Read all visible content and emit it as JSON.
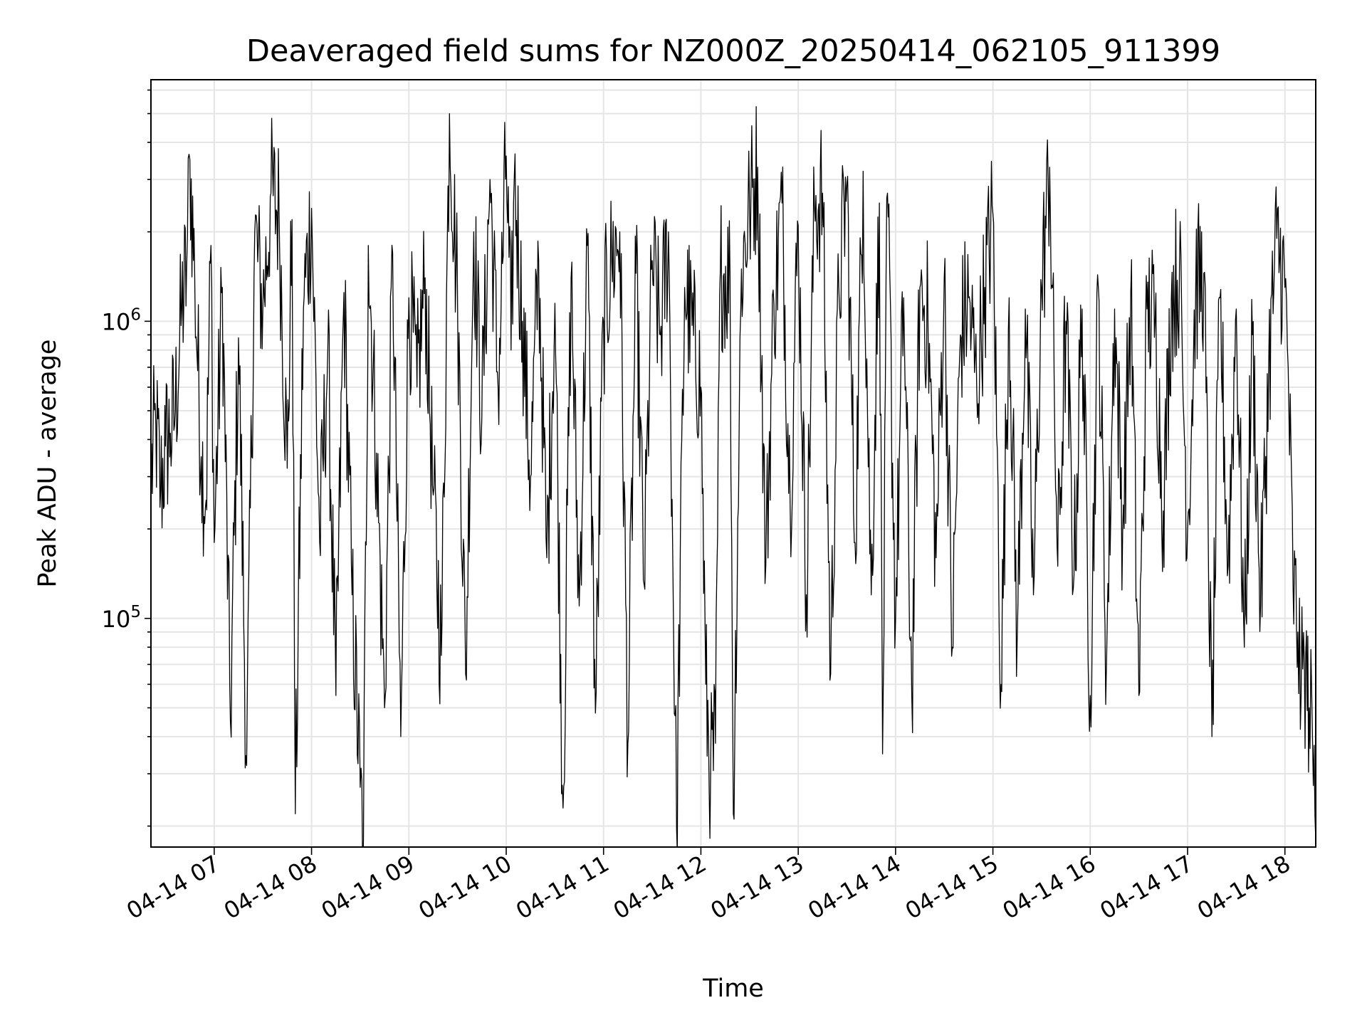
{
  "chart_data": {
    "type": "line",
    "title": "Deaveraged field sums for NZ000Z_20250414_062105_911399",
    "xlabel": "Time",
    "ylabel": "Peak ADU - average",
    "y_scale": "log",
    "ylim": [
      17000,
      6500000
    ],
    "xlim": [
      "2025-04-14 06:21",
      "2025-04-14 18:19"
    ],
    "x_ticks": [
      "04-14 07",
      "04-14 08",
      "04-14 09",
      "04-14 10",
      "04-14 11",
      "04-14 12",
      "04-14 13",
      "04-14 14",
      "04-14 15",
      "04-14 16",
      "04-14 17",
      "04-14 18"
    ],
    "y_ticks": [
      {
        "value": 100000,
        "base": "10",
        "exp": "5"
      },
      {
        "value": 1000000,
        "base": "10",
        "exp": "6"
      }
    ],
    "grid": true,
    "line_color": "#000000",
    "series": [
      {
        "points": [
          [
            "06:21",
            300000
          ],
          [
            "06:24",
            450000
          ],
          [
            "06:27",
            270000
          ],
          [
            "06:30",
            380000
          ],
          [
            "06:33",
            420000
          ],
          [
            "06:36",
            500000
          ],
          [
            "06:40",
            1100000
          ],
          [
            "06:43",
            1500000
          ],
          [
            "06:45",
            3500000
          ],
          [
            "06:48",
            1400000
          ],
          [
            "06:52",
            350000
          ],
          [
            "06:55",
            250000
          ],
          [
            "06:58",
            1800000
          ],
          [
            "07:00",
            180000
          ],
          [
            "07:05",
            1300000
          ],
          [
            "07:10",
            45000
          ],
          [
            "07:15",
            880000
          ],
          [
            "07:20",
            32000
          ],
          [
            "07:25",
            2000000
          ],
          [
            "07:30",
            1100000
          ],
          [
            "07:35",
            2700000
          ],
          [
            "07:40",
            2300000
          ],
          [
            "07:45",
            320000
          ],
          [
            "07:48",
            2200000
          ],
          [
            "07:50",
            22000
          ],
          [
            "07:55",
            1100000
          ],
          [
            "08:00",
            2400000
          ],
          [
            "08:05",
            180000
          ],
          [
            "08:10",
            800000
          ],
          [
            "08:15",
            55000
          ],
          [
            "08:20",
            1250000
          ],
          [
            "08:25",
            120000
          ],
          [
            "08:30",
            27000
          ],
          [
            "08:32",
            18000
          ],
          [
            "08:35",
            1800000
          ],
          [
            "08:40",
            360000
          ],
          [
            "08:45",
            50000
          ],
          [
            "08:50",
            1700000
          ],
          [
            "08:55",
            40000
          ],
          [
            "09:00",
            1200000
          ],
          [
            "09:05",
            600000
          ],
          [
            "09:10",
            1400000
          ],
          [
            "09:15",
            260000
          ],
          [
            "09:20",
            75000
          ],
          [
            "09:25",
            5000000
          ],
          [
            "09:30",
            1200000
          ],
          [
            "09:35",
            65000
          ],
          [
            "09:40",
            2000000
          ],
          [
            "09:45",
            480000
          ],
          [
            "09:50",
            3000000
          ],
          [
            "09:55",
            600000
          ],
          [
            "10:00",
            3600000
          ],
          [
            "10:03",
            800000
          ],
          [
            "10:05",
            3100000
          ],
          [
            "10:10",
            1000000
          ],
          [
            "10:15",
            300000
          ],
          [
            "10:20",
            1600000
          ],
          [
            "10:25",
            160000
          ],
          [
            "10:30",
            1150000
          ],
          [
            "10:35",
            23000
          ],
          [
            "10:40",
            1400000
          ],
          [
            "10:45",
            110000
          ],
          [
            "10:50",
            1800000
          ],
          [
            "10:55",
            48000
          ],
          [
            "11:00",
            1000000
          ],
          [
            "11:05",
            1600000
          ],
          [
            "11:10",
            2000000
          ],
          [
            "11:15",
            38000
          ],
          [
            "11:20",
            1450000
          ],
          [
            "11:25",
            130000
          ],
          [
            "11:30",
            1600000
          ],
          [
            "11:35",
            900000
          ],
          [
            "11:40",
            2000000
          ],
          [
            "11:45",
            19500
          ],
          [
            "11:50",
            1300000
          ],
          [
            "12:00",
            600000
          ],
          [
            "12:03",
            60000
          ],
          [
            "12:06",
            30000
          ],
          [
            "12:09",
            38000
          ],
          [
            "12:12",
            1500000
          ],
          [
            "12:18",
            1400000
          ],
          [
            "12:20",
            22000
          ],
          [
            "12:25",
            1500000
          ],
          [
            "12:30",
            2400000
          ],
          [
            "12:35",
            3300000
          ],
          [
            "12:40",
            150000
          ],
          [
            "12:45",
            1150000
          ],
          [
            "12:50",
            2500000
          ],
          [
            "12:55",
            250000
          ],
          [
            "13:00",
            2100000
          ],
          [
            "13:05",
            120000
          ],
          [
            "13:10",
            2450000
          ],
          [
            "13:15",
            2700000
          ],
          [
            "13:20",
            65000
          ],
          [
            "13:25",
            1300000
          ],
          [
            "13:30",
            2900000
          ],
          [
            "13:35",
            180000
          ],
          [
            "13:40",
            3200000
          ],
          [
            "13:45",
            120000
          ],
          [
            "13:50",
            2500000
          ],
          [
            "13:52",
            35000
          ],
          [
            "13:55",
            2700000
          ],
          [
            "14:00",
            100000
          ],
          [
            "14:05",
            1200000
          ],
          [
            "14:10",
            55000
          ],
          [
            "14:15",
            1300000
          ],
          [
            "14:20",
            1000000
          ],
          [
            "14:25",
            160000
          ],
          [
            "14:30",
            1400000
          ],
          [
            "14:35",
            80000
          ],
          [
            "14:40",
            900000
          ],
          [
            "14:45",
            1200000
          ],
          [
            "14:50",
            600000
          ],
          [
            "14:55",
            1300000
          ],
          [
            "15:00",
            2300000
          ],
          [
            "15:05",
            60000
          ],
          [
            "15:10",
            1200000
          ],
          [
            "15:15",
            85000
          ],
          [
            "15:20",
            1100000
          ],
          [
            "15:25",
            120000
          ],
          [
            "15:30",
            1300000
          ],
          [
            "15:35",
            3300000
          ],
          [
            "15:40",
            150000
          ],
          [
            "15:45",
            1000000
          ],
          [
            "15:50",
            140000
          ],
          [
            "15:55",
            1100000
          ],
          [
            "16:00",
            55000
          ],
          [
            "16:05",
            1300000
          ],
          [
            "16:10",
            70000
          ],
          [
            "16:15",
            1100000
          ],
          [
            "16:20",
            200000
          ],
          [
            "16:25",
            1250000
          ],
          [
            "16:30",
            55000
          ],
          [
            "16:35",
            1100000
          ],
          [
            "16:40",
            1000000
          ],
          [
            "16:45",
            230000
          ],
          [
            "16:50",
            1200000
          ],
          [
            "16:55",
            1500000
          ],
          [
            "17:00",
            200000
          ],
          [
            "17:05",
            1300000
          ],
          [
            "17:10",
            1450000
          ],
          [
            "17:15",
            40000
          ],
          [
            "17:20",
            1200000
          ],
          [
            "17:25",
            150000
          ],
          [
            "17:30",
            1100000
          ],
          [
            "17:35",
            80000
          ],
          [
            "17:40",
            900000
          ],
          [
            "17:45",
            110000
          ],
          [
            "17:50",
            700000
          ],
          [
            "17:55",
            1900000
          ],
          [
            "18:00",
            1300000
          ],
          [
            "18:02",
            700000
          ],
          [
            "18:05",
            130000
          ],
          [
            "18:08",
            90000
          ],
          [
            "18:10",
            55000
          ],
          [
            "18:12",
            70000
          ],
          [
            "18:15",
            50000
          ],
          [
            "18:17",
            40000
          ],
          [
            "18:19",
            18000
          ]
        ]
      }
    ]
  }
}
